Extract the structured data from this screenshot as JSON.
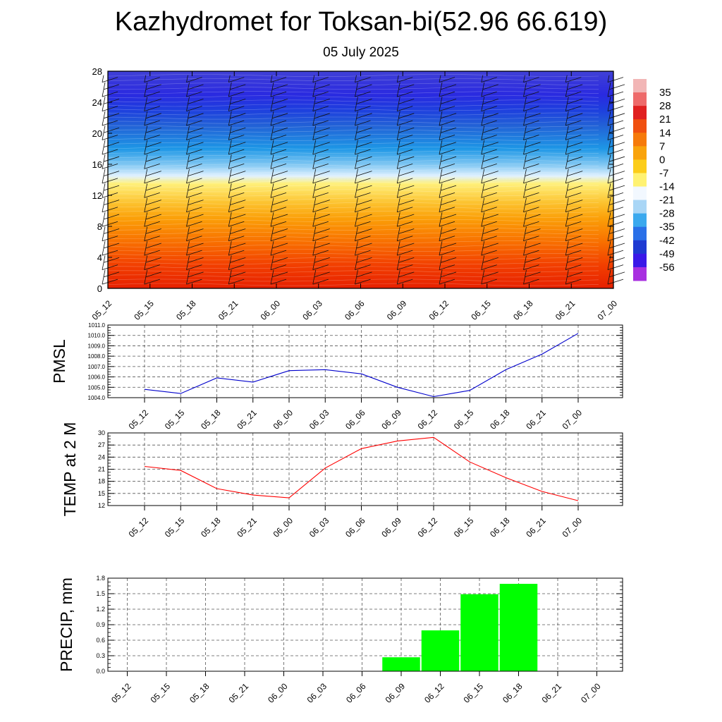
{
  "header": {
    "title": "Kazhydromet for Toksan-bi(52.96 66.619)",
    "date": "05 July 2025"
  },
  "chart_data": [
    {
      "type": "heatmap",
      "x_categories": [
        "05_12",
        "05_15",
        "05_18",
        "05_21",
        "06_00",
        "06_03",
        "06_06",
        "06_09",
        "06_12",
        "06_15",
        "06_18",
        "06_21",
        "07_00"
      ],
      "y_ticks": [
        0,
        4,
        8,
        12,
        16,
        20,
        24,
        28
      ],
      "ylim": [
        0,
        28
      ],
      "colorbar_labels": [
        "35",
        "28",
        "21",
        "14",
        "7",
        "0",
        "-7",
        "-14",
        "-21",
        "-28",
        "-35",
        "-42",
        "-49",
        "-56"
      ],
      "colorbar_colors": [
        "#f2b6b6",
        "#ee6a6a",
        "#e02020",
        "#f05010",
        "#f67a0a",
        "#f9a30c",
        "#fccd1a",
        "#fff272",
        "#f2f8ff",
        "#a9d6f6",
        "#3ba9ee",
        "#2a70e8",
        "#1e3ad2",
        "#3a18e8",
        "#a830e0"
      ],
      "gradient_colors": [
        "#e62000",
        "#f23f00",
        "#f87000",
        "#fb9f08",
        "#fcc22e",
        "#fff07a",
        "#dff1ff",
        "#7ec6f2",
        "#1e97e6",
        "#2261d6",
        "#1e3fde",
        "#2a2ae0",
        "#4040d6"
      ],
      "gradient_levels": [
        0,
        3,
        6,
        9,
        11,
        13.5,
        14.5,
        16,
        18,
        21,
        23,
        25,
        28
      ]
    },
    {
      "type": "line",
      "ylabel": "PMSL",
      "categories": [
        "05_12",
        "05_15",
        "05_18",
        "05_21",
        "06_00",
        "06_03",
        "06_06",
        "06_09",
        "06_12",
        "06_15",
        "06_18",
        "06_21",
        "07_00"
      ],
      "values": [
        1004.8,
        1004.4,
        1005.9,
        1005.5,
        1006.6,
        1006.7,
        1006.3,
        1005.0,
        1004.1,
        1004.7,
        1006.7,
        1008.2,
        1010.2
      ],
      "ylim": [
        1004,
        1011
      ],
      "y_ticks": [
        "1004.0",
        "1005.0",
        "1006.0",
        "1007.0",
        "1008.0",
        "1009.0",
        "1010.0",
        "1011.0"
      ],
      "color": "#0000cc"
    },
    {
      "type": "line",
      "ylabel": "TEMP at 2 M",
      "categories": [
        "05_12",
        "05_15",
        "05_18",
        "05_21",
        "06_00",
        "06_03",
        "06_06",
        "06_09",
        "06_12",
        "06_15",
        "06_18",
        "06_21",
        "07_00"
      ],
      "values": [
        21.7,
        20.7,
        16.2,
        14.6,
        13.9,
        21.3,
        26.1,
        28.0,
        28.9,
        22.8,
        18.9,
        15.5,
        13.2
      ],
      "ylim": [
        12,
        30
      ],
      "y_ticks": [
        "12",
        "15",
        "18",
        "21",
        "24",
        "27",
        "30"
      ],
      "color": "#ff0000"
    },
    {
      "type": "bar",
      "ylabel": "PRECIP, mm",
      "categories": [
        "05_12",
        "05_15",
        "05_18",
        "05_21",
        "06_00",
        "06_03",
        "06_06",
        "06_09",
        "06_12",
        "06_15",
        "06_18",
        "06_21",
        "07_00"
      ],
      "values": [
        0,
        0,
        0,
        0,
        0,
        0,
        0,
        0.27,
        0.79,
        1.49,
        1.69,
        0,
        0
      ],
      "ylim": [
        0,
        1.8
      ],
      "y_ticks": [
        "0.0",
        "0.3",
        "0.6",
        "0.9",
        "1.2",
        "1.5",
        "1.8"
      ],
      "color": "#00ff00"
    }
  ]
}
